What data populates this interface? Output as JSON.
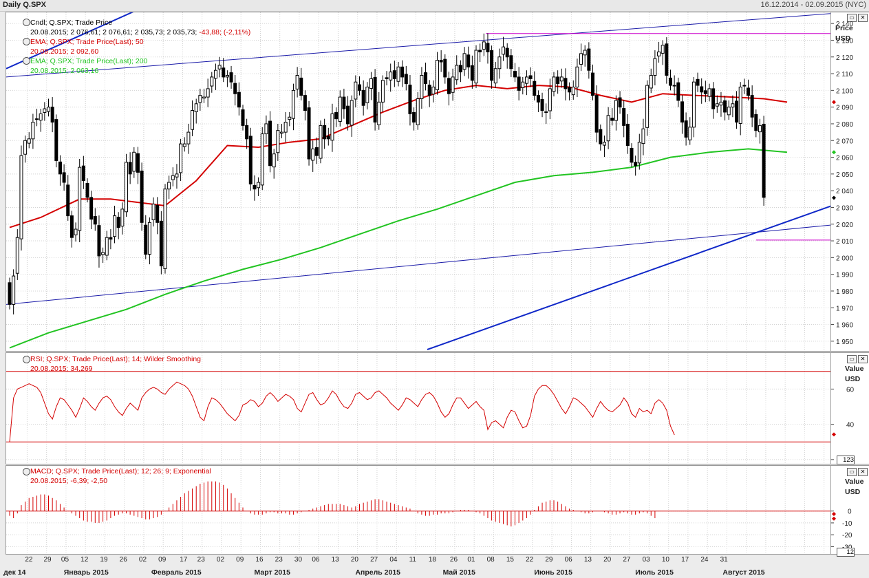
{
  "header": {
    "title": "Daily Q.SPX",
    "range": "16.12.2014 - 02.09.2015 (NYC)"
  },
  "panes": {
    "price": {
      "legend": [
        {
          "name": "Cndl; Q.SPX; Trade Price",
          "values": "20.08.2015; 2 076,61; 2 076,61; 2 035,73; 2 035,73;",
          "change": "-43,88; (-2,11%)",
          "color": "#000000"
        },
        {
          "name": "EMA; Q.SPX; Trade Price(Last);  50",
          "values": "20.08.2015; 2 092,60",
          "color": "#d40000"
        },
        {
          "name": "EMA; Q.SPX; Trade Price(Last);  200",
          "values": "20.08.2015; 2 063,16",
          "color": "#22c422"
        }
      ],
      "axis_title": "Price",
      "axis_unit": "USD"
    },
    "rsi": {
      "legend": [
        {
          "name": "RSI; Q.SPX; Trade Price(Last);  14; Wilder Smoothing",
          "values": "20.08.2015; 34,269"
        }
      ],
      "axis_title": "Value",
      "axis_unit": "USD",
      "axis_box": "123"
    },
    "macd": {
      "legend": [
        {
          "name": "MACD; Q.SPX; Trade Price(Last);  12; 26; 9; Exponential",
          "values": "20.08.2015; -6,39; -2,50"
        }
      ],
      "axis_title": "Value",
      "axis_unit": "USD",
      "axis_box": "12"
    }
  },
  "x_axis": {
    "days": [
      "22",
      "29",
      "05",
      "12",
      "19",
      "26",
      "02",
      "09",
      "17",
      "23",
      "02",
      "09",
      "16",
      "23",
      "30",
      "06",
      "13",
      "20",
      "27",
      "04",
      "11",
      "18",
      "26",
      "01",
      "08",
      "15",
      "22",
      "29",
      "06",
      "13",
      "20",
      "27",
      "03",
      "10",
      "17",
      "24",
      "31"
    ],
    "months": [
      "дек 14",
      "Январь 2015",
      "Февраль 2015",
      "Март 2015",
      "Апрель 2015",
      "Май 2015",
      "Июнь 2015",
      "Июль 2015",
      "Август 2015"
    ]
  },
  "chart_data": [
    {
      "type": "candlestick",
      "pane": "price",
      "ylim": [
        1945,
        2145
      ],
      "yticks": [
        1950,
        1960,
        1970,
        1980,
        1990,
        2000,
        2010,
        2020,
        2030,
        2040,
        2050,
        2060,
        2070,
        2080,
        2090,
        2100,
        2110,
        2120,
        2130,
        2140
      ],
      "ytick_labels": [
        "1 950",
        "1 960",
        "1 970",
        "1 980",
        "1 990",
        "2 000",
        "2 010",
        "2 020",
        "2 030",
        "2 040",
        "2 050",
        "2 060",
        "2 070",
        "2 080",
        "2 090",
        "2 100",
        "2 110",
        "2 120",
        "2 130",
        "2 140"
      ],
      "last_close": 2035.73,
      "closes": [
        1972,
        1989,
        2012,
        2061,
        2070,
        2071,
        2081,
        2083,
        2086,
        2089,
        2090,
        2081,
        2058,
        2050,
        2045,
        2025,
        2012,
        2017,
        2054,
        2046,
        2036,
        2023,
        2020,
        2001,
        2003,
        2012,
        2011,
        2025,
        2018,
        2029,
        2057,
        2050,
        2063,
        2051,
        2021,
        2002,
        2021,
        2032,
        2021,
        1995,
        2041,
        2045,
        2049,
        2050,
        2068,
        2068,
        2075,
        2088,
        2092,
        2097,
        2096,
        2101,
        2108,
        2112,
        2115,
        2108,
        2109,
        2105,
        2098,
        2090,
        2079,
        2071,
        2044,
        2041,
        2045,
        2074,
        2080,
        2055,
        2062,
        2076,
        2075,
        2081,
        2084,
        2100,
        2109,
        2097,
        2088,
        2059,
        2065,
        2061,
        2079,
        2071,
        2071,
        2086,
        2083,
        2096,
        2089,
        2080,
        2094,
        2105,
        2100,
        2091,
        2102,
        2107,
        2081,
        2093,
        2106,
        2107,
        2111,
        2107,
        2114,
        2108,
        2104,
        2086,
        2081,
        2095,
        2109,
        2104,
        2097,
        2102,
        2118,
        2117,
        2108,
        2098,
        2108,
        2115,
        2111,
        2122,
        2114,
        2106,
        2124,
        2123,
        2129,
        2123,
        2106,
        2113,
        2120,
        2126,
        2120,
        2113,
        2108,
        2100,
        2105,
        2108,
        2107,
        2097,
        2093,
        2088,
        2087,
        2101,
        2108,
        2104,
        2108,
        2101,
        2099,
        2102,
        2114,
        2122,
        2124,
        2112,
        2097,
        2075,
        2068,
        2069,
        2085,
        2082,
        2094,
        2090,
        2079,
        2067,
        2057,
        2055,
        2069,
        2077,
        2103,
        2109,
        2119,
        2123,
        2127,
        2109,
        2103,
        2103,
        2094,
        2081,
        2072,
        2078,
        2105,
        2103,
        2099,
        2098,
        2101,
        2089,
        2092,
        2093,
        2087,
        2090,
        2092,
        2081,
        2102,
        2103,
        2097,
        2084,
        2076,
        2079,
        2036
      ],
      "ema50": {
        "name": "EMA 50",
        "color": "#d40000",
        "x_day": [
          0,
          8,
          18,
          26,
          40,
          48,
          56,
          64,
          72,
          80,
          88,
          96,
          104,
          112,
          120,
          128,
          136,
          144,
          152,
          160,
          168,
          176,
          186,
          194,
          200
        ],
        "values": [
          2018,
          2024,
          2035,
          2035,
          2031,
          2046,
          2067,
          2066,
          2069,
          2071,
          2079,
          2087,
          2094,
          2100,
          2103,
          2101,
          2103,
          2102,
          2097,
          2093,
          2098,
          2097,
          2096,
          2095,
          2093
        ]
      },
      "ema200": {
        "name": "EMA 200",
        "color": "#22c422",
        "x_day": [
          0,
          10,
          20,
          30,
          40,
          50,
          60,
          70,
          80,
          90,
          100,
          110,
          120,
          130,
          140,
          150,
          160,
          170,
          180,
          190,
          200
        ],
        "values": [
          1946,
          1955,
          1962,
          1969,
          1978,
          1986,
          1993,
          1999,
          2006,
          2014,
          2022,
          2029,
          2037,
          2045,
          2049,
          2051,
          2054,
          2060,
          2063,
          2065,
          2063
        ]
      },
      "hlines": [
        {
          "y": 2134,
          "color": "#cc00cc"
        },
        {
          "y": 2010.5,
          "color": "#cc00cc"
        }
      ]
    },
    {
      "type": "line",
      "pane": "rsi",
      "ylim": [
        18,
        75
      ],
      "yticks": [
        20,
        40,
        60
      ],
      "bands": [
        70,
        30
      ],
      "last": 34.269,
      "values": [
        30,
        55,
        60,
        61,
        62,
        63,
        62,
        61,
        58,
        52,
        46,
        43,
        50,
        55,
        54,
        51,
        48,
        44,
        49,
        55,
        53,
        50,
        48,
        52,
        55,
        56,
        54,
        50,
        47,
        45,
        49,
        52,
        50,
        48,
        55,
        58,
        60,
        61,
        60,
        58,
        57,
        60,
        62,
        64,
        63,
        62,
        60,
        56,
        50,
        44,
        42,
        50,
        55,
        54,
        52,
        49,
        46,
        44,
        42,
        45,
        51,
        52,
        54,
        53,
        50,
        52,
        56,
        58,
        56,
        53,
        55,
        57,
        56,
        54,
        49,
        47,
        52,
        57,
        58,
        54,
        51,
        52,
        55,
        59,
        57,
        53,
        50,
        49,
        52,
        57,
        58,
        56,
        54,
        55,
        58,
        59,
        57,
        55,
        52,
        50,
        48,
        51,
        55,
        54,
        52,
        50,
        54,
        57,
        58,
        56,
        52,
        47,
        44,
        46,
        51,
        55,
        55,
        52,
        49,
        51,
        53,
        50,
        48,
        37,
        41,
        42,
        40,
        38,
        44,
        48,
        47,
        42,
        38,
        39,
        45,
        56,
        60,
        62,
        62,
        60,
        57,
        53,
        49,
        46,
        50,
        55,
        54,
        52,
        50,
        47,
        44,
        49,
        53,
        50,
        48,
        47,
        49,
        51,
        55,
        52,
        46,
        44,
        49,
        47,
        48,
        46,
        52,
        54,
        52,
        48,
        39,
        34
      ]
    },
    {
      "type": "bar",
      "pane": "macd",
      "ylim": [
        -35,
        30
      ],
      "yticks": [
        0,
        -10,
        -20,
        -30
      ],
      "macd": -6.39,
      "signal": -2.5,
      "values": [
        -4,
        -6,
        -2,
        5,
        8,
        11,
        12,
        13,
        14,
        14,
        13,
        11,
        9,
        6,
        3,
        0,
        -2,
        -4,
        -6,
        -8,
        -9,
        -9,
        -10,
        -10,
        -9,
        -8,
        -6,
        -4,
        -3,
        -2,
        -2,
        -3,
        -4,
        -5,
        -6,
        -7,
        -7,
        -6,
        -5,
        -3,
        0,
        3,
        6,
        9,
        12,
        15,
        17,
        19,
        21,
        23,
        24,
        25,
        25,
        25,
        24,
        22,
        19,
        15,
        11,
        7,
        3,
        0,
        -2,
        -3,
        -3,
        -3,
        -2,
        -1,
        -1,
        -2,
        -2,
        -2,
        -3,
        -3,
        -2,
        -1,
        0,
        1,
        2,
        3,
        4,
        5,
        6,
        6,
        6,
        6,
        5,
        4,
        3,
        4,
        6,
        7,
        8,
        9,
        10,
        10,
        9,
        8,
        7,
        6,
        5,
        4,
        3,
        2,
        0,
        -2,
        -3,
        -4,
        -4,
        -3,
        -3,
        -2,
        -2,
        -2,
        -1,
        0,
        1,
        1,
        1,
        0,
        -1,
        -2,
        -4,
        -6,
        -8,
        -9,
        -10,
        -11,
        -12,
        -13,
        -12,
        -10,
        -8,
        -6,
        -3,
        1,
        4,
        7,
        8,
        9,
        9,
        8,
        6,
        4,
        2,
        1,
        0,
        -1,
        -2,
        -2,
        -1,
        0,
        0,
        -1,
        -2,
        -3,
        -3,
        -2,
        -1,
        -2,
        -3,
        -3,
        -2,
        -1,
        -2,
        -4,
        -6
      ]
    }
  ]
}
